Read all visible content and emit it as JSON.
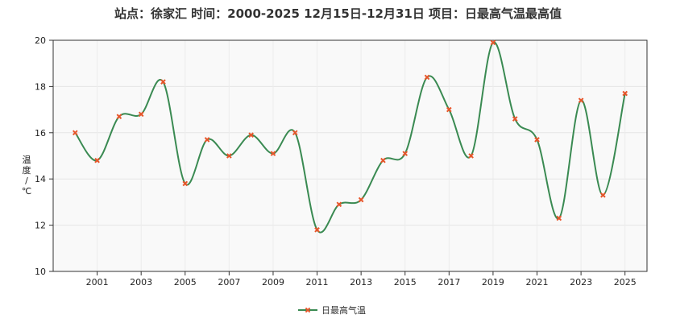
{
  "chart_data": {
    "type": "line",
    "title": "站点：徐家汇 时间：2000-2025  12月15日-12月31日 项目：日最高气温最高值",
    "ylabel": "温度/℃",
    "xlabel": "",
    "x": [
      2000,
      2001,
      2002,
      2003,
      2004,
      2005,
      2006,
      2007,
      2008,
      2009,
      2010,
      2011,
      2012,
      2013,
      2014,
      2015,
      2016,
      2017,
      2018,
      2019,
      2020,
      2021,
      2022,
      2023,
      2024,
      2025
    ],
    "x_tick_labels": [
      "2001",
      "2003",
      "2005",
      "2007",
      "2009",
      "2011",
      "2013",
      "2015",
      "2017",
      "2019",
      "2021",
      "2023",
      "2025"
    ],
    "xlim": [
      1999,
      2026
    ],
    "ylim": [
      10,
      20
    ],
    "y_ticks": [
      10,
      12,
      14,
      16,
      18,
      20
    ],
    "grid": true,
    "legend_position": "bottom-center",
    "series": [
      {
        "name": "日最高气温",
        "line_color": "#3a8a52",
        "marker_color": "#e8552a",
        "values": [
          16.0,
          14.8,
          16.7,
          16.8,
          18.2,
          13.8,
          15.7,
          15.0,
          15.9,
          15.1,
          16.0,
          11.8,
          12.9,
          13.1,
          14.8,
          15.1,
          18.4,
          17.0,
          15.0,
          19.9,
          16.6,
          15.7,
          12.3,
          17.4,
          13.3,
          17.7
        ]
      }
    ]
  }
}
